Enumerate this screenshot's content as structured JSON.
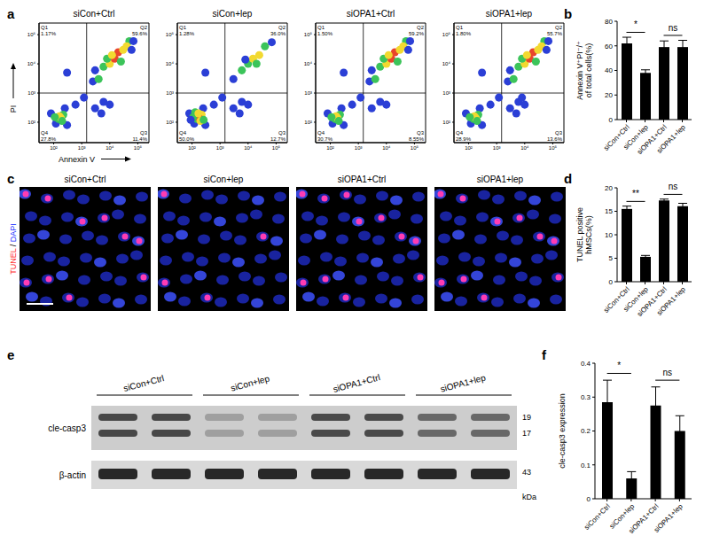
{
  "chart_data": [
    {
      "type": "scatter",
      "panel": "a",
      "title": "siCon+Ctrl",
      "xlabel": "Annexin V",
      "ylabel": "PI",
      "log": true,
      "xlim": [
        30,
        250000
      ],
      "ylim": [
        20,
        250000
      ],
      "xticks": [
        {
          "value": 100,
          "label": "10²"
        },
        {
          "value": 1000,
          "label": "10³"
        },
        {
          "value": 10000,
          "label": "10⁴"
        },
        {
          "value": 100000,
          "label": "10⁵"
        }
      ],
      "yticks": [
        {
          "value": 100,
          "label": "10²"
        },
        {
          "value": 1000,
          "label": "10³"
        },
        {
          "value": 10000,
          "label": "10⁴"
        },
        {
          "value": 100000,
          "label": "10⁵"
        }
      ],
      "gates": {
        "x": 1500,
        "y": 1000
      },
      "quadrants": {
        "names": [
          "Q1",
          "Q2",
          "Q3",
          "Q4"
        ],
        "values": [
          1.17,
          59.6,
          11.4,
          27.8
        ],
        "value_labels": [
          "1.17%",
          "59.6%",
          "11.4%",
          "27.8%"
        ]
      },
      "points": {
        "x": [
          120,
          300,
          80,
          250,
          150,
          220,
          180,
          160,
          110,
          200,
          600,
          1200,
          2500,
          4000,
          6000,
          10000,
          15000,
          20000,
          30000,
          50000,
          70000,
          8000,
          25000,
          12000,
          40000,
          3000,
          60000,
          3000,
          6000,
          10000,
          5000,
          300
        ],
        "y": [
          90,
          80,
          200,
          300,
          130,
          180,
          140,
          160,
          150,
          110,
          400,
          700,
          2500,
          3000,
          8000,
          10000,
          15000,
          25000,
          30000,
          60000,
          60000,
          15000,
          12000,
          20000,
          40000,
          6000,
          30000,
          300,
          500,
          400,
          200,
          5000
        ],
        "colors": [
          "#2b3fd6",
          "#2b3fd6",
          "#2b3fd6",
          "#2b3fd6",
          "#3cc45a",
          "#3cc45a",
          "#f2d930",
          "#f2d930",
          "#3cc45a",
          "#3cc45a",
          "#2b3fd6",
          "#2b3fd6",
          "#2b3fd6",
          "#3cc45a",
          "#3cc45a",
          "#f2d930",
          "#e8452c",
          "#e8452c",
          "#f2d930",
          "#3cc45a",
          "#2b3fd6",
          "#3cc45a",
          "#3cc45a",
          "#f2d930",
          "#f2d930",
          "#2b3fd6",
          "#2b3fd6",
          "#2b3fd6",
          "#2b3fd6",
          "#2b3fd6",
          "#2b3fd6",
          "#2b3fd6"
        ]
      }
    },
    {
      "type": "scatter",
      "title": "siCon+lep",
      "log": true,
      "xlim": [
        30,
        250000
      ],
      "ylim": [
        20,
        250000
      ],
      "xticks": [
        {
          "value": 100,
          "label": "10²"
        },
        {
          "value": 1000,
          "label": "10³"
        },
        {
          "value": 10000,
          "label": "10⁴"
        },
        {
          "value": 100000,
          "label": "10⁵"
        }
      ],
      "yticks": [
        {
          "value": 100,
          "label": "10²"
        },
        {
          "value": 1000,
          "label": "10³"
        },
        {
          "value": 10000,
          "label": "10⁴"
        },
        {
          "value": 100000,
          "label": "10⁵"
        }
      ],
      "gates": {
        "x": 1500,
        "y": 1000
      },
      "quadrants": {
        "names": [
          "Q1",
          "Q2",
          "Q3",
          "Q4"
        ],
        "values": [
          1.28,
          36,
          12.7,
          50
        ],
        "value_labels": [
          "1.28%",
          "36.0%",
          "12.7%",
          "50.0%"
        ]
      },
      "points": {
        "x": [
          120,
          300,
          80,
          250,
          150,
          220,
          180,
          160,
          110,
          200,
          130,
          260,
          90,
          170,
          600,
          1200,
          3000,
          6000,
          10000,
          15000,
          25000,
          40000,
          70000,
          8000,
          20000,
          3000,
          6000,
          10000,
          5000,
          300
        ],
        "y": [
          90,
          80,
          200,
          300,
          130,
          180,
          140,
          160,
          150,
          110,
          220,
          120,
          120,
          200,
          400,
          700,
          3000,
          6000,
          10000,
          15000,
          20000,
          40000,
          55000,
          14000,
          10000,
          300,
          500,
          400,
          200,
          5000
        ],
        "colors": [
          "#2b3fd6",
          "#2b3fd6",
          "#2b3fd6",
          "#2b3fd6",
          "#3cc45a",
          "#f2d930",
          "#e8452c",
          "#e8452c",
          "#3cc45a",
          "#f2d930",
          "#3cc45a",
          "#3cc45a",
          "#2b3fd6",
          "#f2d930",
          "#2b3fd6",
          "#2b3fd6",
          "#2b3fd6",
          "#3cc45a",
          "#3cc45a",
          "#f2d930",
          "#f2d930",
          "#3cc45a",
          "#2b3fd6",
          "#2b3fd6",
          "#3cc45a",
          "#2b3fd6",
          "#2b3fd6",
          "#2b3fd6",
          "#2b3fd6",
          "#2b3fd6"
        ]
      }
    },
    {
      "type": "scatter",
      "title": "siOPA1+Ctrl",
      "log": true,
      "xlim": [
        30,
        250000
      ],
      "ylim": [
        20,
        250000
      ],
      "xticks": [
        {
          "value": 100,
          "label": "10²"
        },
        {
          "value": 1000,
          "label": "10³"
        },
        {
          "value": 10000,
          "label": "10⁴"
        },
        {
          "value": 100000,
          "label": "10⁵"
        }
      ],
      "yticks": [
        {
          "value": 100,
          "label": "10²"
        },
        {
          "value": 1000,
          "label": "10³"
        },
        {
          "value": 10000,
          "label": "10⁴"
        },
        {
          "value": 100000,
          "label": "10⁵"
        }
      ],
      "gates": {
        "x": 1500,
        "y": 1000
      },
      "quadrants": {
        "names": [
          "Q1",
          "Q2",
          "Q3",
          "Q4"
        ],
        "values": [
          1.5,
          59.2,
          8.55,
          30.7
        ],
        "value_labels": [
          "1.50%",
          "59.2%",
          "8.55%",
          "30.7%"
        ]
      },
      "points": {
        "x": [
          120,
          300,
          80,
          250,
          150,
          220,
          180,
          160,
          110,
          200,
          600,
          1200,
          2500,
          4000,
          6000,
          10000,
          15000,
          20000,
          30000,
          50000,
          70000,
          8000,
          25000,
          12000,
          40000,
          3000,
          60000,
          3000,
          6000,
          10000,
          300
        ],
        "y": [
          90,
          80,
          200,
          300,
          130,
          180,
          140,
          160,
          150,
          110,
          400,
          700,
          2500,
          3000,
          8000,
          10000,
          15000,
          25000,
          30000,
          60000,
          60000,
          15000,
          12000,
          20000,
          40000,
          6000,
          30000,
          300,
          500,
          400,
          5000
        ],
        "colors": [
          "#2b3fd6",
          "#2b3fd6",
          "#2b3fd6",
          "#2b3fd6",
          "#3cc45a",
          "#3cc45a",
          "#f2d930",
          "#f2d930",
          "#3cc45a",
          "#3cc45a",
          "#2b3fd6",
          "#2b3fd6",
          "#2b3fd6",
          "#3cc45a",
          "#3cc45a",
          "#f2d930",
          "#e8452c",
          "#e8452c",
          "#f2d930",
          "#3cc45a",
          "#2b3fd6",
          "#3cc45a",
          "#3cc45a",
          "#f2d930",
          "#f2d930",
          "#2b3fd6",
          "#2b3fd6",
          "#2b3fd6",
          "#2b3fd6",
          "#2b3fd6",
          "#2b3fd6"
        ]
      }
    },
    {
      "type": "scatter",
      "title": "siOPA1+lep",
      "log": true,
      "xlim": [
        30,
        250000
      ],
      "ylim": [
        20,
        250000
      ],
      "xticks": [
        {
          "value": 100,
          "label": "10²"
        },
        {
          "value": 1000,
          "label": "10³"
        },
        {
          "value": 10000,
          "label": "10⁴"
        },
        {
          "value": 100000,
          "label": "10⁵"
        }
      ],
      "yticks": [
        {
          "value": 100,
          "label": "10²"
        },
        {
          "value": 1000,
          "label": "10³"
        },
        {
          "value": 10000,
          "label": "10⁴"
        },
        {
          "value": 100000,
          "label": "10⁵"
        }
      ],
      "gates": {
        "x": 1500,
        "y": 1000
      },
      "quadrants": {
        "names": [
          "Q1",
          "Q2",
          "Q3",
          "Q4"
        ],
        "values": [
          1.8,
          55.7,
          13.6,
          28.9
        ],
        "value_labels": [
          "1.80%",
          "55.7%",
          "13.6%",
          "28.9%"
        ]
      },
      "points": {
        "x": [
          120,
          300,
          80,
          250,
          150,
          220,
          180,
          160,
          110,
          200,
          600,
          1200,
          2500,
          4000,
          6000,
          10000,
          15000,
          20000,
          30000,
          50000,
          70000,
          8000,
          25000,
          12000,
          40000,
          3000,
          60000,
          3000,
          6000,
          10000,
          5000,
          8000,
          300
        ],
        "y": [
          90,
          80,
          200,
          300,
          130,
          180,
          140,
          160,
          150,
          110,
          400,
          700,
          2500,
          3000,
          8000,
          10000,
          15000,
          25000,
          30000,
          60000,
          60000,
          15000,
          12000,
          20000,
          40000,
          6000,
          30000,
          300,
          500,
          400,
          200,
          700,
          5000
        ],
        "colors": [
          "#2b3fd6",
          "#2b3fd6",
          "#2b3fd6",
          "#2b3fd6",
          "#3cc45a",
          "#3cc45a",
          "#f2d930",
          "#f2d930",
          "#3cc45a",
          "#3cc45a",
          "#2b3fd6",
          "#2b3fd6",
          "#2b3fd6",
          "#3cc45a",
          "#3cc45a",
          "#f2d930",
          "#e8452c",
          "#e8452c",
          "#f2d930",
          "#3cc45a",
          "#2b3fd6",
          "#3cc45a",
          "#3cc45a",
          "#f2d930",
          "#f2d930",
          "#2b3fd6",
          "#2b3fd6",
          "#2b3fd6",
          "#2b3fd6",
          "#2b3fd6",
          "#2b3fd6",
          "#2b3fd6",
          "#2b3fd6"
        ]
      }
    },
    {
      "type": "bar",
      "panel": "b",
      "categories": [
        "siCon+Ctrl",
        "siCon+lep",
        "siOPA1+Ctrl",
        "siOPA1+lep"
      ],
      "values": [
        62,
        38,
        59,
        59
      ],
      "errors": [
        5,
        2.5,
        5,
        5.5
      ],
      "color": "#000000",
      "ylabel": "Annexin V⁺PI⁻/⁺ of total cells(%)",
      "ylim": [
        0,
        80
      ],
      "yticks": [
        0,
        20,
        40,
        60,
        80
      ],
      "annotations": [
        {
          "between": [
            0,
            1
          ],
          "text": "*"
        },
        {
          "between": [
            2,
            3
          ],
          "text": "ns"
        }
      ]
    },
    {
      "type": "bar",
      "panel": "d",
      "categories": [
        "siCon+Ctrl",
        "siCon+lep",
        "siOPA1+Ctrl",
        "siOPA1+lep"
      ],
      "values": [
        15.5,
        5.3,
        17.3,
        16.1
      ],
      "errors": [
        0.6,
        0.3,
        0.3,
        0.6
      ],
      "color": "#000000",
      "ylabel": "TUNEL positive hMSCs(%)",
      "ylim": [
        0,
        20
      ],
      "yticks": [
        0,
        5,
        10,
        15,
        20
      ],
      "annotations": [
        {
          "between": [
            0,
            1
          ],
          "text": "**"
        },
        {
          "between": [
            2,
            3
          ],
          "text": "ns"
        }
      ]
    },
    {
      "type": "bar",
      "panel": "f",
      "categories": [
        "siCon+Ctrl",
        "siCon+lep",
        "siOPA1+Ctrl",
        "siOPA1+lep"
      ],
      "values": [
        0.285,
        0.06,
        0.275,
        0.2
      ],
      "errors": [
        0.065,
        0.02,
        0.055,
        0.045
      ],
      "color": "#000000",
      "ylabel": "cle-casp3 expression",
      "ylim": [
        0,
        0.4
      ],
      "yticks": [
        0,
        0.1,
        0.2,
        0.3,
        0.4
      ],
      "annotations": [
        {
          "between": [
            0,
            1
          ],
          "text": "*"
        },
        {
          "between": [
            2,
            3
          ],
          "text": "ns"
        }
      ]
    }
  ],
  "tunel": {
    "panel": "c",
    "groups": [
      "siCon+Ctrl",
      "siCon+lep",
      "siOPA1+Ctrl",
      "siOPA1+lep"
    ],
    "stain": [
      {
        "text": "TUNEL",
        "color": "#ff2a2a"
      },
      {
        "text": " / ",
        "color": "#000000"
      },
      {
        "text": "DAPI",
        "color": "#2233ff"
      }
    ]
  },
  "western_blot": {
    "panel": "e",
    "groups": [
      "siCon+Ctrl",
      "siCon+lep",
      "siOPA1+Ctrl",
      "siOPA1+lep"
    ],
    "lanes_per_group": 2,
    "rows": [
      {
        "label": "cle-casp3",
        "markers": [
          19,
          17
        ]
      },
      {
        "label": "β-actin",
        "markers": [
          43
        ]
      }
    ],
    "marker_unit": "kDa"
  }
}
